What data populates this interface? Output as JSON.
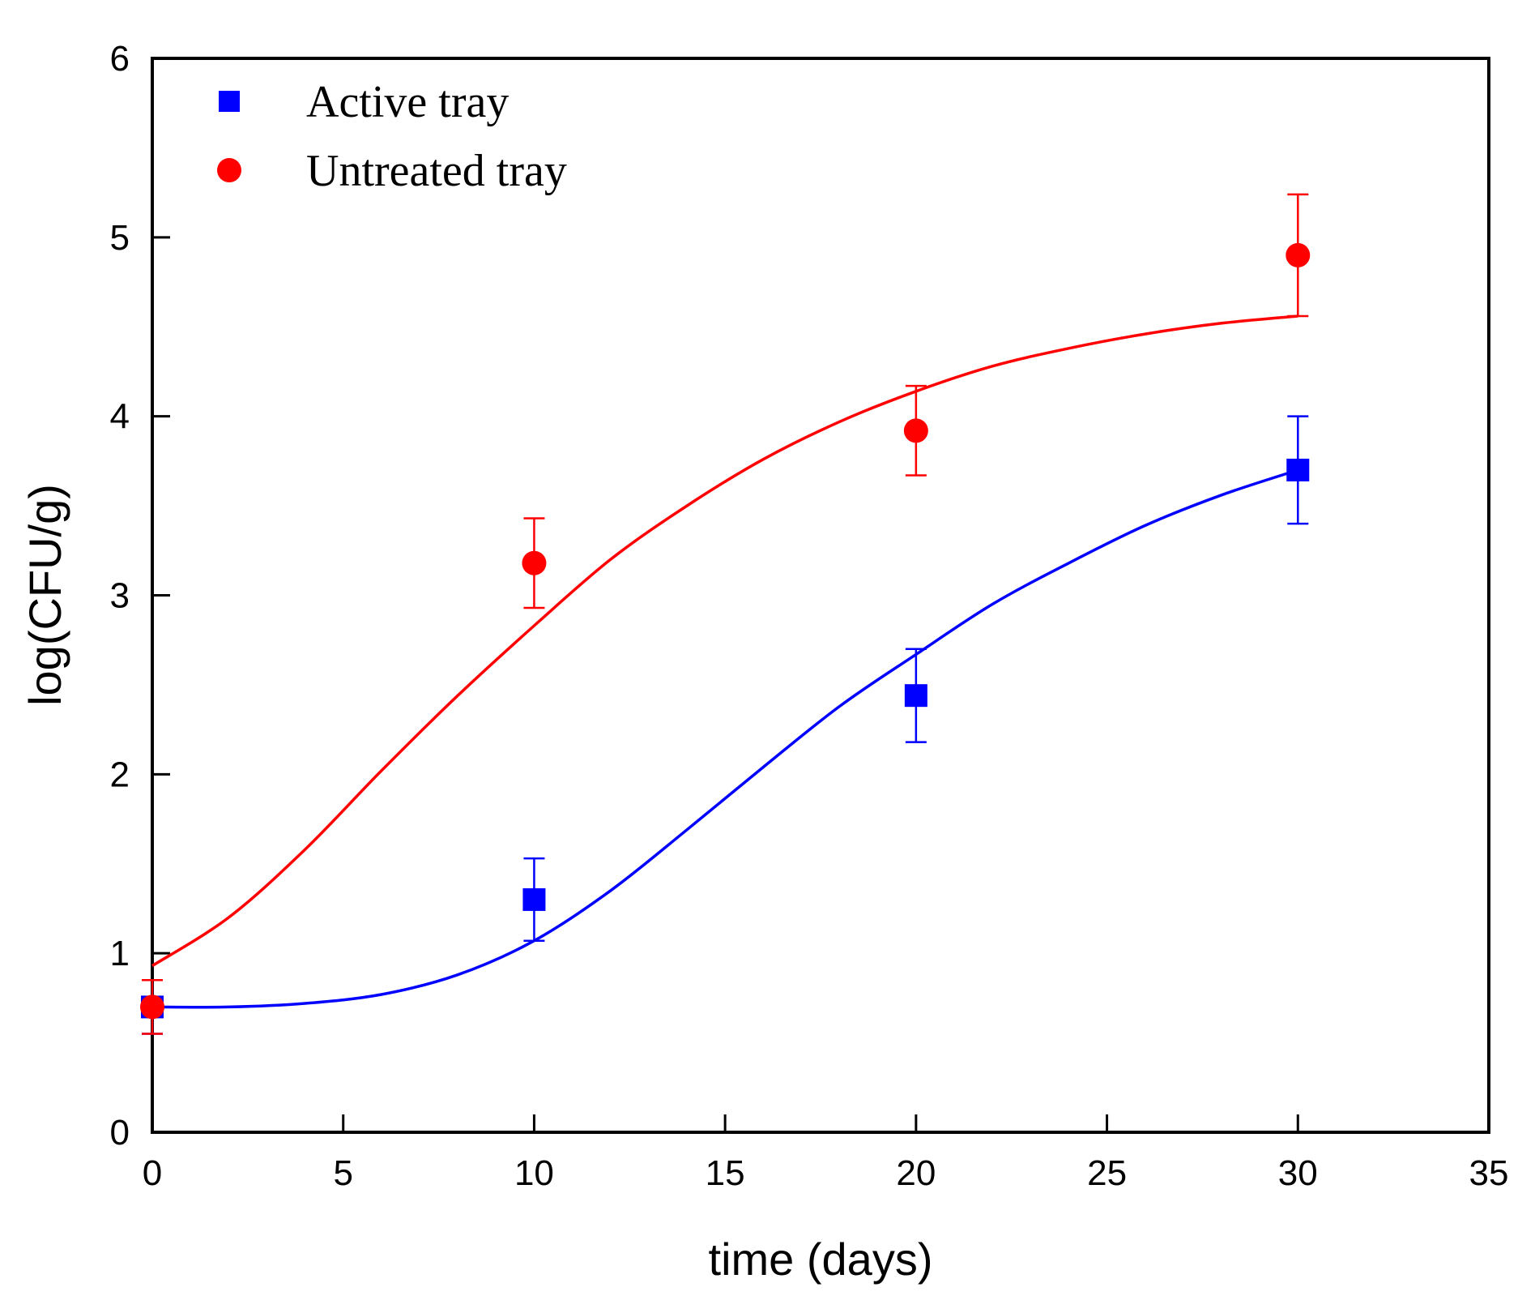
{
  "chart_data": {
    "type": "scatter",
    "title": "",
    "xlabel": "time (days)",
    "ylabel": "log(CFU/g)",
    "xlim": [
      0,
      35
    ],
    "ylim": [
      0,
      6
    ],
    "xticks": [
      0,
      5,
      10,
      15,
      20,
      25,
      30,
      35
    ],
    "yticks": [
      0,
      1,
      2,
      3,
      4,
      5,
      6
    ],
    "xtick_labels": [
      "0",
      "5",
      "10",
      "15",
      "20",
      "25",
      "30",
      "35"
    ],
    "ytick_labels": [
      "0",
      "1",
      "2",
      "3",
      "4",
      "5",
      "6"
    ],
    "grid": false,
    "legend_position": "top-left",
    "series": [
      {
        "name": "Active tray",
        "color": "#0000ff",
        "marker": "square",
        "x": [
          0,
          10,
          20,
          30
        ],
        "y": [
          0.7,
          1.3,
          2.44,
          3.7
        ],
        "error": [
          0.15,
          0.23,
          0.26,
          0.3
        ],
        "fit": {
          "x": [
            0,
            2,
            4,
            6,
            8,
            10,
            12,
            14,
            16,
            18,
            20,
            22,
            24,
            26,
            28,
            30
          ],
          "y": [
            0.7,
            0.7,
            0.72,
            0.77,
            0.88,
            1.07,
            1.35,
            1.69,
            2.04,
            2.38,
            2.67,
            2.95,
            3.18,
            3.39,
            3.56,
            3.7
          ]
        }
      },
      {
        "name": "Untreated tray",
        "color": "#ff0000",
        "marker": "circle",
        "x": [
          0,
          10,
          20,
          30
        ],
        "y": [
          0.7,
          3.18,
          3.92,
          4.9
        ],
        "error": [
          0.15,
          0.25,
          0.25,
          0.34
        ],
        "fit": {
          "x": [
            0,
            2,
            4,
            6,
            8,
            10,
            12,
            14,
            16,
            18,
            20,
            22,
            24,
            26,
            28,
            30
          ],
          "y": [
            0.93,
            1.2,
            1.58,
            2.02,
            2.44,
            2.83,
            3.2,
            3.5,
            3.76,
            3.97,
            4.14,
            4.28,
            4.38,
            4.46,
            4.52,
            4.56
          ]
        }
      }
    ]
  }
}
